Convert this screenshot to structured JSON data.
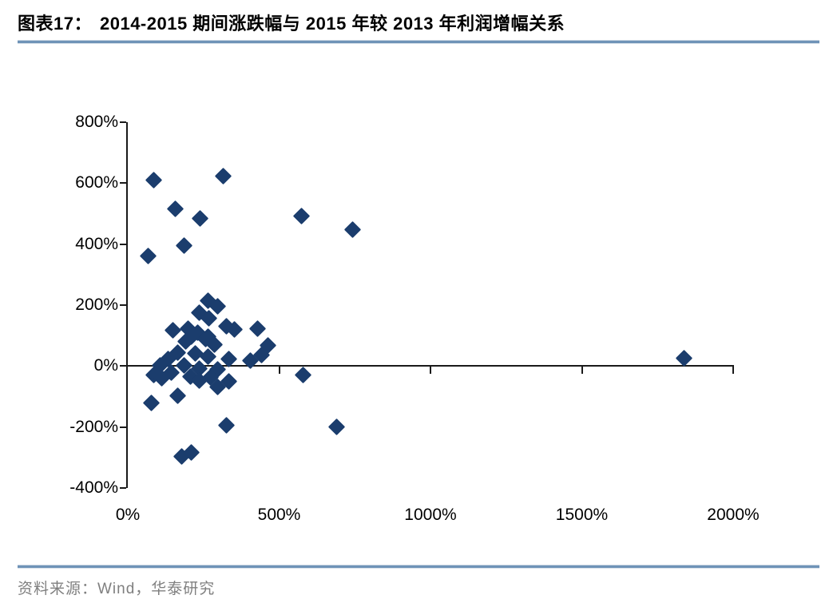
{
  "header": {
    "figure_label": "图表17：",
    "title": "2014-2015 期间涨跌幅与 2015 年较 2013 年利润增幅关系"
  },
  "footer": {
    "source": "资料来源：Wind，华泰研究"
  },
  "colors": {
    "marker": "#1b3d6d",
    "axis": "#1a1a1a",
    "rule": "#6f93b7",
    "source_text": "#7f7f7f"
  },
  "chart_data": {
    "type": "scatter",
    "title": "2014-2015 期间涨跌幅与 2015 年较 2013 年利润增幅关系",
    "xlabel": "",
    "ylabel": "",
    "xlim": [
      0,
      2000
    ],
    "ylim": [
      -400,
      800
    ],
    "grid": false,
    "legend": "none",
    "marker": "diamond",
    "marker_color": "#1b3d6d",
    "x_ticks": [
      {
        "value": 0,
        "label": "0%"
      },
      {
        "value": 500,
        "label": "500%"
      },
      {
        "value": 1000,
        "label": "1000%"
      },
      {
        "value": 1500,
        "label": "1500%"
      },
      {
        "value": 2000,
        "label": "2000%"
      }
    ],
    "y_ticks": [
      {
        "value": 800,
        "label": "800%"
      },
      {
        "value": 600,
        "label": "600%"
      },
      {
        "value": 400,
        "label": "400%"
      },
      {
        "value": 200,
        "label": "200%"
      },
      {
        "value": 0,
        "label": "0%"
      },
      {
        "value": -200,
        "label": "-200%"
      },
      {
        "value": -400,
        "label": "-400%"
      }
    ],
    "points": [
      [
        87,
        611
      ],
      [
        314,
        624
      ],
      [
        158,
        517
      ],
      [
        240,
        483
      ],
      [
        575,
        493
      ],
      [
        744,
        448
      ],
      [
        187,
        396
      ],
      [
        66,
        362
      ],
      [
        264,
        215
      ],
      [
        298,
        197
      ],
      [
        237,
        176
      ],
      [
        269,
        157
      ],
      [
        325,
        131
      ],
      [
        351,
        121
      ],
      [
        430,
        123
      ],
      [
        198,
        123
      ],
      [
        230,
        110
      ],
      [
        148,
        118
      ],
      [
        211,
        97
      ],
      [
        264,
        97
      ],
      [
        190,
        81
      ],
      [
        256,
        89
      ],
      [
        285,
        71
      ],
      [
        462,
        68
      ],
      [
        164,
        45
      ],
      [
        224,
        42
      ],
      [
        132,
        24
      ],
      [
        264,
        31
      ],
      [
        335,
        24
      ],
      [
        441,
        37
      ],
      [
        404,
        18
      ],
      [
        106,
        3
      ],
      [
        185,
        3
      ],
      [
        237,
        -8
      ],
      [
        296,
        -10
      ],
      [
        145,
        -21
      ],
      [
        87,
        -29
      ],
      [
        206,
        -34
      ],
      [
        272,
        -37
      ],
      [
        113,
        -39
      ],
      [
        237,
        -47
      ],
      [
        298,
        -68
      ],
      [
        335,
        -50
      ],
      [
        164,
        -97
      ],
      [
        77,
        -121
      ],
      [
        580,
        -29
      ],
      [
        325,
        -194
      ],
      [
        689,
        -199
      ],
      [
        177,
        -296
      ],
      [
        211,
        -283
      ],
      [
        1839,
        26
      ]
    ]
  }
}
